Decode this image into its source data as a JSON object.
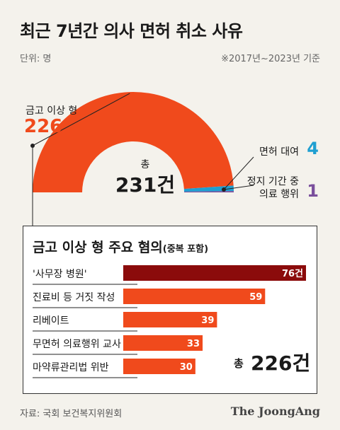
{
  "header": {
    "title": "최근 7년간 의사 면허 취소 사유",
    "unit": "단위: 명",
    "basis": "※2017년~2023년 기준"
  },
  "colors": {
    "orange": "#f04a1c",
    "blue": "#1f9fd1",
    "purple": "#7a4f9c",
    "dark_red": "#8b0b0b",
    "track": "#e6e6e6"
  },
  "donut": {
    "center_label": "총",
    "center_total": "231건",
    "labels": {
      "main_label": "금고 이상 형",
      "main_value": "226",
      "rent_label": "면허 대여",
      "rent_value": "4",
      "susp_label_1": "정지 기간 중",
      "susp_label_2": "의료 행위",
      "susp_value": "1"
    }
  },
  "box": {
    "title": "금고 이상 형 주요 혐의",
    "subtitle": "(중복 포함)",
    "sum_label": "총",
    "sum_value": "226건"
  },
  "chart_data": [
    {
      "type": "pie",
      "categories": [
        "금고 이상 형",
        "면허 대여",
        "정지 기간 중 의료 행위"
      ],
      "values": [
        226,
        4,
        1
      ],
      "title": "",
      "total": 231
    },
    {
      "type": "bar",
      "categories": [
        "'사무장 병원'",
        "진료비 등 거짓 작성",
        "리베이트",
        "무면허 의료행위 교사",
        "마약류관리법 위반"
      ],
      "values": [
        76,
        59,
        39,
        33,
        30
      ],
      "data_labels": [
        "76건",
        "59",
        "39",
        "33",
        "30"
      ],
      "title": "",
      "xlabel": "",
      "ylabel": ""
    }
  ],
  "footer": {
    "source": "자료: 국회 보건복지위원회",
    "brand": "The JoongAng"
  }
}
